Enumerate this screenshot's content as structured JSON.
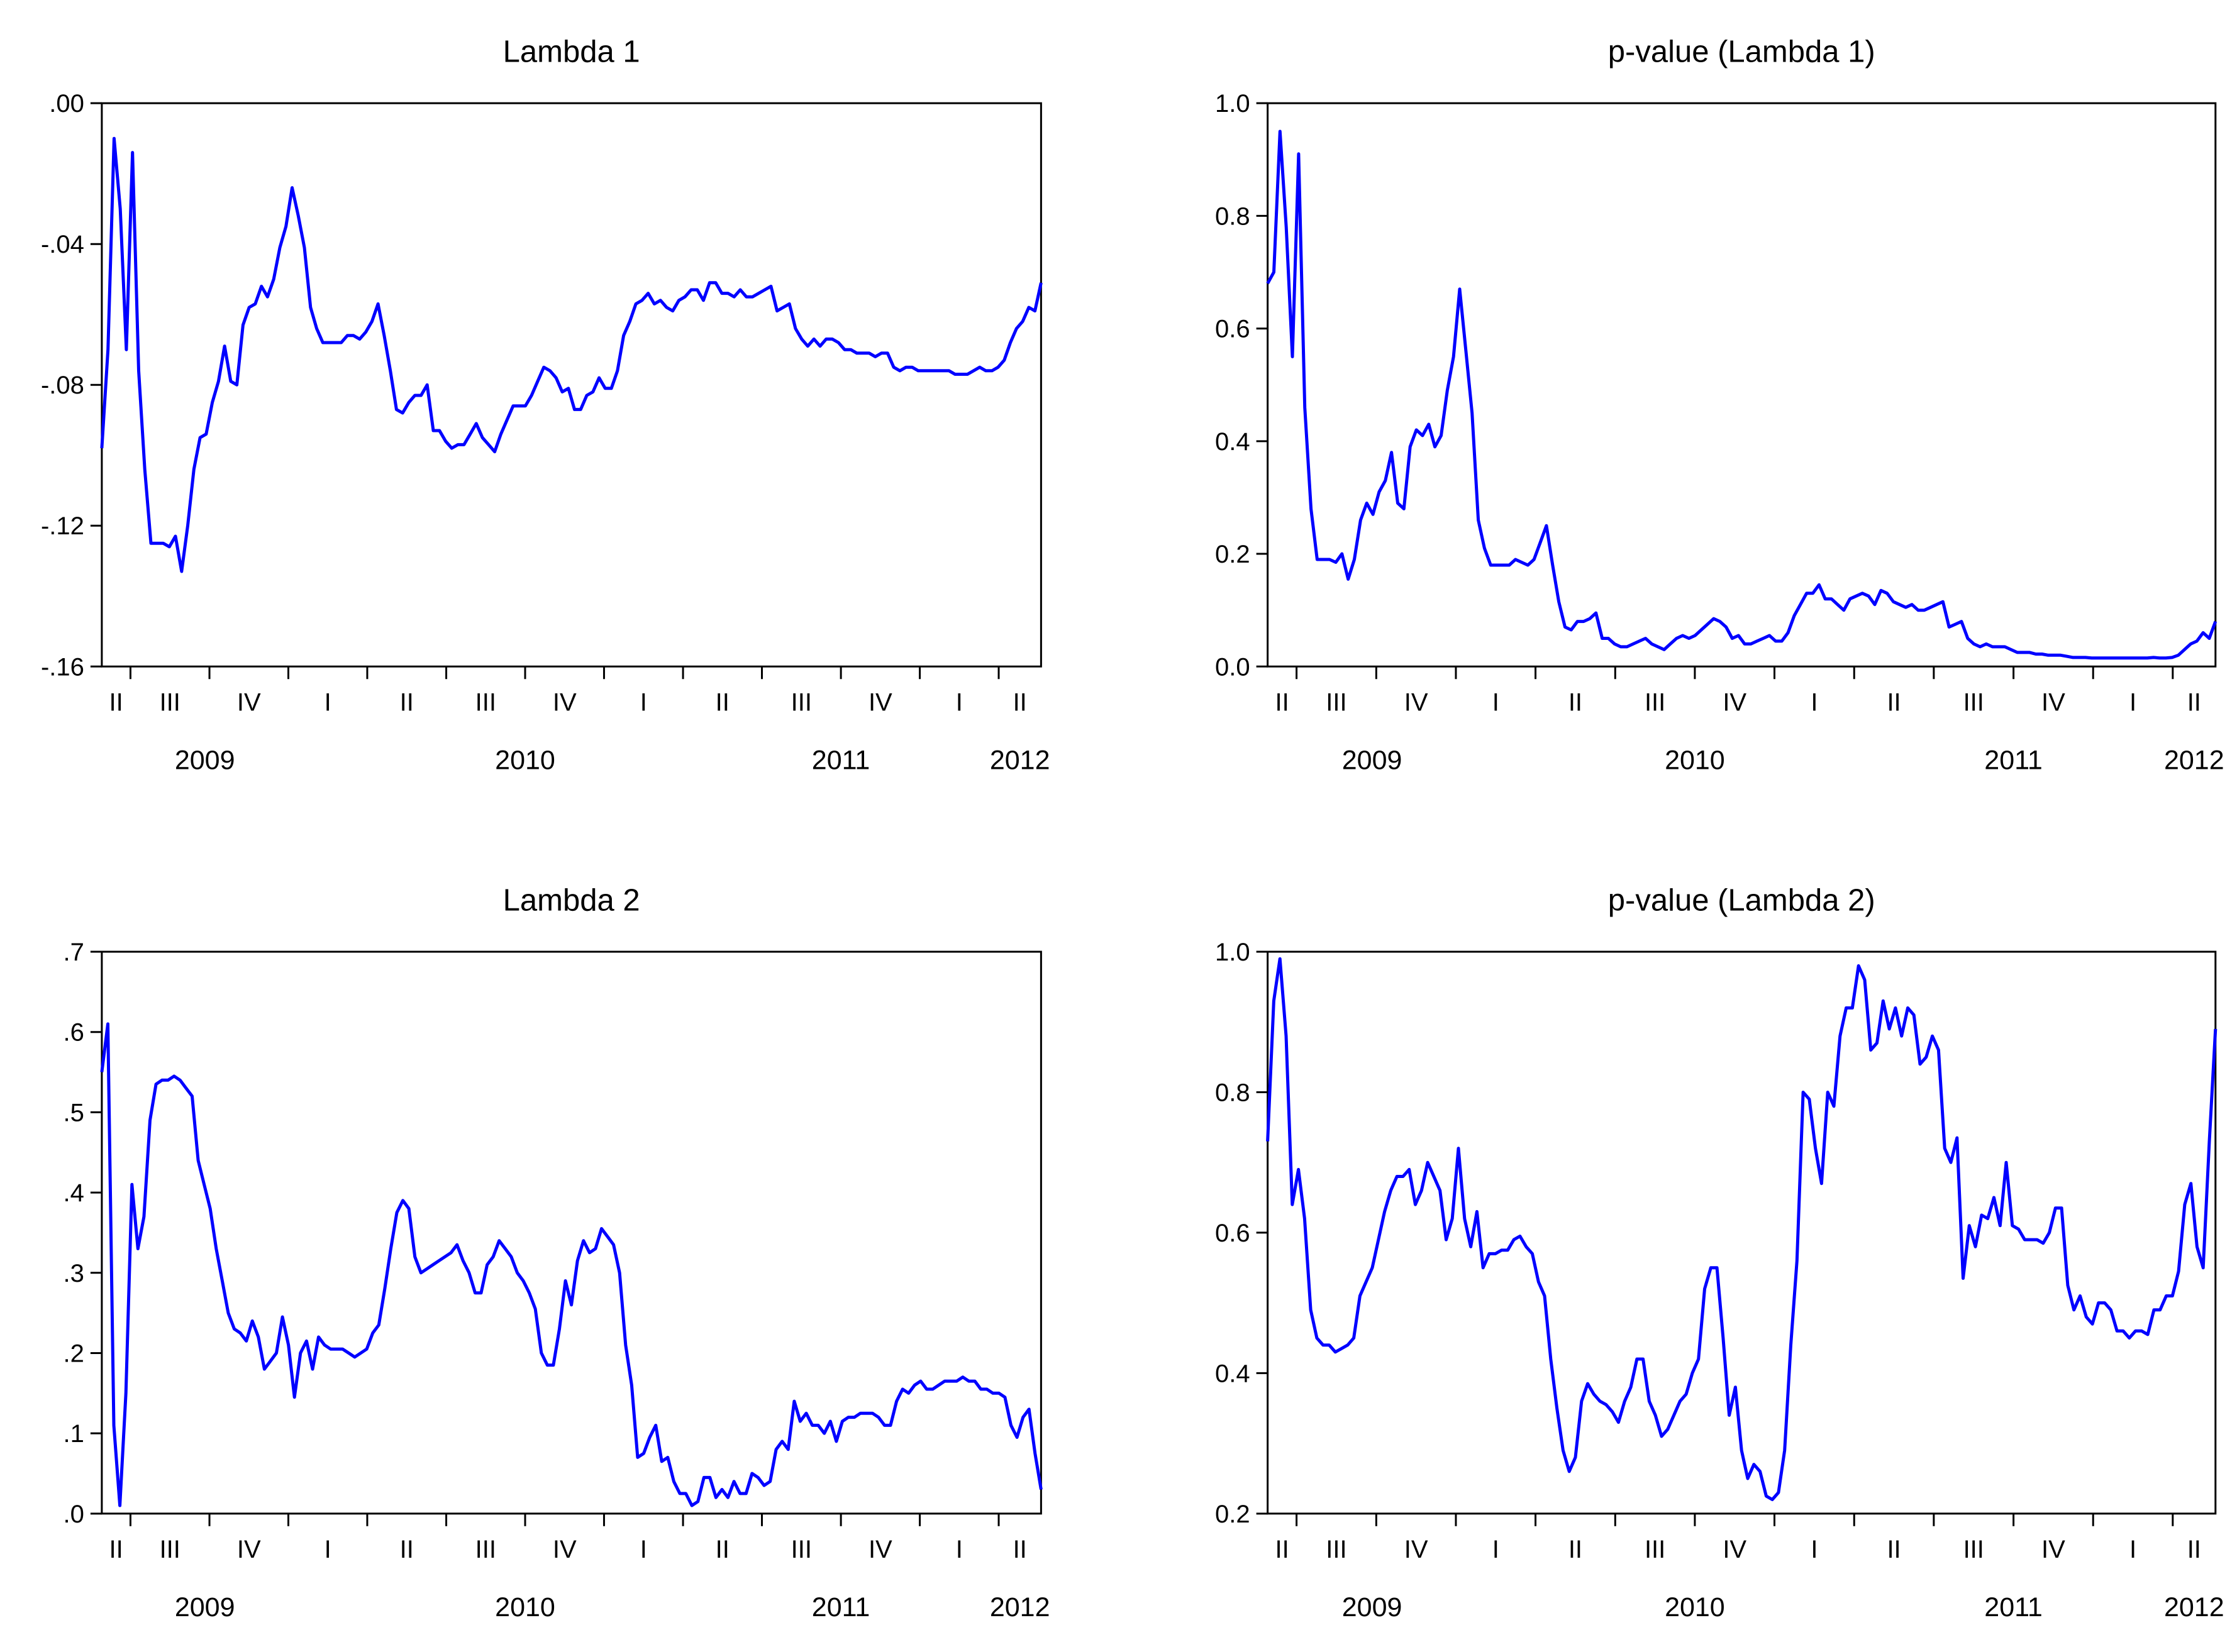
{
  "line_color": "#0000ff",
  "chart_data": [
    {
      "type": "line",
      "title": "Lambda 1",
      "ylim": [
        -0.16,
        0.0
      ],
      "yticks": [
        -0.16,
        -0.12,
        -0.08,
        -0.04,
        0.0
      ],
      "ytick_labels": [
        "-.16",
        "-.12",
        "-.08",
        "-.04",
        ".00"
      ],
      "quarter_labels": [
        "II",
        "III",
        "IV",
        "I",
        "II",
        "III",
        "IV",
        "I",
        "II",
        "III",
        "IV",
        "I",
        "II"
      ],
      "year_labels": [
        "2009",
        "2010",
        "2011",
        "2012"
      ],
      "series": [
        {
          "values": [
            -0.098,
            -0.07,
            -0.01,
            -0.03,
            -0.07,
            -0.014,
            -0.076,
            -0.104,
            -0.125,
            -0.125,
            -0.125,
            -0.126,
            -0.123,
            -0.133,
            -0.12,
            -0.104,
            -0.095,
            -0.094,
            -0.085,
            -0.079,
            -0.069,
            -0.079,
            -0.08,
            -0.063,
            -0.058,
            -0.057,
            -0.052,
            -0.055,
            -0.05,
            -0.041,
            -0.035,
            -0.024,
            -0.032,
            -0.041,
            -0.058,
            -0.064,
            -0.068,
            -0.068,
            -0.068,
            -0.068,
            -0.066,
            -0.066,
            -0.067,
            -0.065,
            -0.062,
            -0.057,
            -0.066,
            -0.076,
            -0.087,
            -0.088,
            -0.085,
            -0.083,
            -0.083,
            -0.08,
            -0.093,
            -0.093,
            -0.096,
            -0.098,
            -0.097,
            -0.097,
            -0.094,
            -0.091,
            -0.095,
            -0.097,
            -0.099,
            -0.094,
            -0.09,
            -0.086,
            -0.086,
            -0.086,
            -0.083,
            -0.079,
            -0.075,
            -0.076,
            -0.078,
            -0.082,
            -0.081,
            -0.087,
            -0.087,
            -0.083,
            -0.082,
            -0.078,
            -0.081,
            -0.081,
            -0.076,
            -0.066,
            -0.062,
            -0.057,
            -0.056,
            -0.054,
            -0.057,
            -0.056,
            -0.058,
            -0.059,
            -0.056,
            -0.055,
            -0.053,
            -0.053,
            -0.056,
            -0.051,
            -0.051,
            -0.054,
            -0.054,
            -0.055,
            -0.053,
            -0.055,
            -0.055,
            -0.054,
            -0.053,
            -0.052,
            -0.059,
            -0.058,
            -0.057,
            -0.064,
            -0.067,
            -0.069,
            -0.067,
            -0.069,
            -0.067,
            -0.067,
            -0.068,
            -0.07,
            -0.07,
            -0.071,
            -0.071,
            -0.071,
            -0.072,
            -0.071,
            -0.071,
            -0.075,
            -0.076,
            -0.075,
            -0.075,
            -0.076,
            -0.076,
            -0.076,
            -0.076,
            -0.076,
            -0.076,
            -0.077,
            -0.077,
            -0.077,
            -0.076,
            -0.075,
            -0.076,
            -0.076,
            -0.075,
            -0.073,
            -0.068,
            -0.064,
            -0.062,
            -0.058,
            -0.059,
            -0.051
          ]
        }
      ]
    },
    {
      "type": "line",
      "title": "p-value (Lambda 1)",
      "ylim": [
        0.0,
        1.0
      ],
      "yticks": [
        0.0,
        0.2,
        0.4,
        0.6,
        0.8,
        1.0
      ],
      "ytick_labels": [
        "0.0",
        "0.2",
        "0.4",
        "0.6",
        "0.8",
        "1.0"
      ],
      "quarter_labels": [
        "II",
        "III",
        "IV",
        "I",
        "II",
        "III",
        "IV",
        "I",
        "II",
        "III",
        "IV",
        "I",
        "II"
      ],
      "year_labels": [
        "2009",
        "2010",
        "2011",
        "2012"
      ],
      "series": [
        {
          "values": [
            0.68,
            0.7,
            0.95,
            0.78,
            0.55,
            0.91,
            0.46,
            0.28,
            0.19,
            0.19,
            0.19,
            0.185,
            0.2,
            0.155,
            0.19,
            0.26,
            0.29,
            0.27,
            0.31,
            0.33,
            0.38,
            0.29,
            0.28,
            0.39,
            0.42,
            0.41,
            0.43,
            0.39,
            0.41,
            0.49,
            0.55,
            0.67,
            0.56,
            0.45,
            0.26,
            0.21,
            0.18,
            0.18,
            0.18,
            0.18,
            0.19,
            0.185,
            0.18,
            0.19,
            0.22,
            0.25,
            0.18,
            0.115,
            0.07,
            0.065,
            0.08,
            0.08,
            0.085,
            0.095,
            0.05,
            0.05,
            0.04,
            0.035,
            0.035,
            0.04,
            0.045,
            0.05,
            0.04,
            0.035,
            0.03,
            0.04,
            0.05,
            0.055,
            0.05,
            0.055,
            0.065,
            0.075,
            0.085,
            0.08,
            0.07,
            0.05,
            0.055,
            0.04,
            0.04,
            0.045,
            0.05,
            0.055,
            0.045,
            0.045,
            0.06,
            0.09,
            0.11,
            0.13,
            0.13,
            0.145,
            0.12,
            0.12,
            0.11,
            0.1,
            0.12,
            0.125,
            0.13,
            0.125,
            0.11,
            0.135,
            0.13,
            0.115,
            0.11,
            0.105,
            0.11,
            0.1,
            0.1,
            0.105,
            0.11,
            0.115,
            0.07,
            0.075,
            0.08,
            0.05,
            0.04,
            0.035,
            0.04,
            0.035,
            0.035,
            0.035,
            0.03,
            0.025,
            0.025,
            0.025,
            0.022,
            0.022,
            0.02,
            0.02,
            0.02,
            0.018,
            0.016,
            0.016,
            0.016,
            0.015,
            0.015,
            0.015,
            0.015,
            0.015,
            0.015,
            0.015,
            0.015,
            0.015,
            0.015,
            0.016,
            0.015,
            0.015,
            0.016,
            0.02,
            0.03,
            0.04,
            0.045,
            0.06,
            0.05,
            0.08
          ]
        }
      ]
    },
    {
      "type": "line",
      "title": "Lambda 2",
      "ylim": [
        0.0,
        0.7
      ],
      "yticks": [
        0.0,
        0.1,
        0.2,
        0.3,
        0.4,
        0.5,
        0.6,
        0.7
      ],
      "ytick_labels": [
        ".0",
        ".1",
        ".2",
        ".3",
        ".4",
        ".5",
        ".6",
        ".7"
      ],
      "quarter_labels": [
        "II",
        "III",
        "IV",
        "I",
        "II",
        "III",
        "IV",
        "I",
        "II",
        "III",
        "IV",
        "I",
        "II"
      ],
      "year_labels": [
        "2009",
        "2010",
        "2011",
        "2012"
      ],
      "series": [
        {
          "values": [
            0.55,
            0.61,
            0.11,
            0.01,
            0.15,
            0.41,
            0.33,
            0.37,
            0.49,
            0.535,
            0.54,
            0.54,
            0.545,
            0.54,
            0.53,
            0.52,
            0.44,
            0.41,
            0.38,
            0.33,
            0.29,
            0.25,
            0.23,
            0.225,
            0.215,
            0.24,
            0.22,
            0.18,
            0.19,
            0.2,
            0.245,
            0.21,
            0.145,
            0.2,
            0.215,
            0.18,
            0.22,
            0.21,
            0.205,
            0.205,
            0.205,
            0.2,
            0.195,
            0.2,
            0.205,
            0.225,
            0.235,
            0.28,
            0.33,
            0.375,
            0.39,
            0.38,
            0.32,
            0.3,
            0.305,
            0.31,
            0.315,
            0.32,
            0.325,
            0.335,
            0.315,
            0.3,
            0.275,
            0.275,
            0.31,
            0.32,
            0.34,
            0.33,
            0.32,
            0.3,
            0.29,
            0.275,
            0.255,
            0.2,
            0.185,
            0.185,
            0.23,
            0.29,
            0.26,
            0.315,
            0.34,
            0.325,
            0.33,
            0.355,
            0.345,
            0.335,
            0.3,
            0.21,
            0.16,
            0.07,
            0.075,
            0.095,
            0.11,
            0.065,
            0.07,
            0.04,
            0.025,
            0.025,
            0.01,
            0.015,
            0.045,
            0.045,
            0.02,
            0.03,
            0.02,
            0.04,
            0.025,
            0.025,
            0.05,
            0.045,
            0.035,
            0.04,
            0.08,
            0.09,
            0.08,
            0.14,
            0.115,
            0.125,
            0.11,
            0.11,
            0.1,
            0.115,
            0.09,
            0.115,
            0.12,
            0.12,
            0.125,
            0.125,
            0.125,
            0.12,
            0.11,
            0.11,
            0.14,
            0.155,
            0.15,
            0.16,
            0.165,
            0.155,
            0.155,
            0.16,
            0.165,
            0.165,
            0.165,
            0.17,
            0.165,
            0.165,
            0.155,
            0.155,
            0.15,
            0.15,
            0.145,
            0.11,
            0.095,
            0.12,
            0.13,
            0.075,
            0.03
          ]
        }
      ]
    },
    {
      "type": "line",
      "title": "p-value (Lambda 2)",
      "ylim": [
        0.2,
        1.0
      ],
      "yticks": [
        0.2,
        0.4,
        0.6,
        0.8,
        1.0
      ],
      "ytick_labels": [
        "0.2",
        "0.4",
        "0.6",
        "0.8",
        "1.0"
      ],
      "quarter_labels": [
        "II",
        "III",
        "IV",
        "I",
        "II",
        "III",
        "IV",
        "I",
        "II",
        "III",
        "IV",
        "I",
        "II"
      ],
      "year_labels": [
        "2009",
        "2010",
        "2011",
        "2012"
      ],
      "series": [
        {
          "values": [
            0.73,
            0.93,
            0.99,
            0.88,
            0.64,
            0.69,
            0.62,
            0.49,
            0.45,
            0.44,
            0.44,
            0.43,
            0.435,
            0.44,
            0.45,
            0.51,
            0.53,
            0.55,
            0.59,
            0.63,
            0.66,
            0.68,
            0.68,
            0.69,
            0.64,
            0.66,
            0.7,
            0.68,
            0.66,
            0.59,
            0.62,
            0.72,
            0.62,
            0.58,
            0.63,
            0.55,
            0.57,
            0.57,
            0.575,
            0.575,
            0.59,
            0.595,
            0.58,
            0.57,
            0.53,
            0.51,
            0.42,
            0.35,
            0.29,
            0.26,
            0.28,
            0.36,
            0.385,
            0.37,
            0.36,
            0.355,
            0.345,
            0.33,
            0.36,
            0.38,
            0.42,
            0.42,
            0.36,
            0.34,
            0.31,
            0.32,
            0.34,
            0.36,
            0.37,
            0.4,
            0.42,
            0.52,
            0.55,
            0.55,
            0.45,
            0.34,
            0.38,
            0.29,
            0.25,
            0.27,
            0.26,
            0.225,
            0.22,
            0.23,
            0.29,
            0.44,
            0.56,
            0.8,
            0.79,
            0.72,
            0.67,
            0.8,
            0.78,
            0.88,
            0.92,
            0.92,
            0.98,
            0.96,
            0.86,
            0.87,
            0.93,
            0.89,
            0.92,
            0.88,
            0.92,
            0.91,
            0.84,
            0.85,
            0.88,
            0.86,
            0.72,
            0.7,
            0.735,
            0.535,
            0.61,
            0.58,
            0.625,
            0.62,
            0.65,
            0.61,
            0.7,
            0.61,
            0.605,
            0.59,
            0.59,
            0.59,
            0.585,
            0.6,
            0.635,
            0.635,
            0.525,
            0.49,
            0.51,
            0.48,
            0.47,
            0.5,
            0.5,
            0.49,
            0.46,
            0.46,
            0.45,
            0.46,
            0.46,
            0.455,
            0.49,
            0.49,
            0.51,
            0.51,
            0.545,
            0.64,
            0.67,
            0.58,
            0.55,
            0.73,
            0.89
          ]
        }
      ]
    }
  ]
}
